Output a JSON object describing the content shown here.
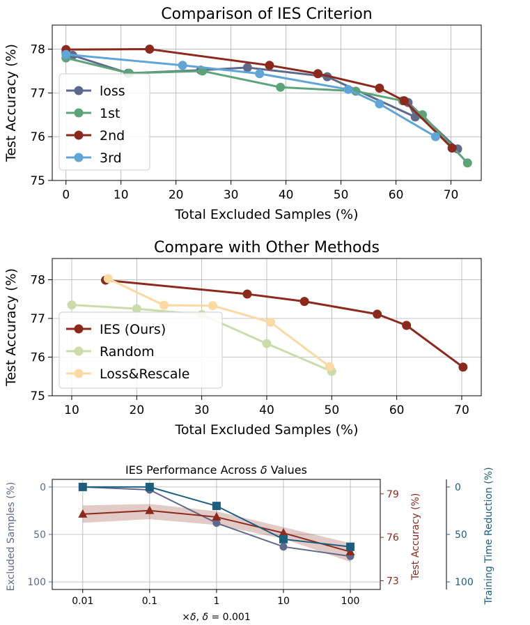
{
  "colors": {
    "loss": "#5e6a8c",
    "first": "#5da37a",
    "second": "#8b2a1c",
    "third": "#5fa6d6",
    "random": "#cbdbaa",
    "loss_rescale": "#fbd9a2",
    "excluded_axis": "#5e6a8c",
    "accuracy_axis": "#8b2a1c",
    "time_axis": "#1b5e80"
  },
  "chart_data": [
    {
      "type": "line",
      "title": "Comparison of IES Criterion",
      "xlabel": "Total Excluded Samples (%)",
      "ylabel": "Test Accuracy (%)",
      "xlim": [
        -2.5,
        75.5
      ],
      "ylim": [
        75,
        78.55
      ],
      "xticks": [
        0,
        10,
        20,
        30,
        40,
        50,
        60,
        70
      ],
      "yticks": [
        75,
        76,
        77,
        78
      ],
      "legend": "upper-left-middle",
      "series": [
        {
          "name": "loss",
          "color_key": "loss",
          "x": [
            0,
            1.2,
            11.3,
            24.5,
            33,
            47.5,
            63.5,
            62.2,
            71.2
          ],
          "y": [
            77.92,
            77.86,
            77.45,
            77.52,
            77.58,
            77.37,
            76.45,
            76.78,
            75.72
          ]
        },
        {
          "name": "1st",
          "color_key": "first",
          "x": [
            0,
            11.5,
            24.8,
            39,
            52.7,
            61.2,
            64.8,
            73
          ],
          "y": [
            77.8,
            77.45,
            77.5,
            77.13,
            77.04,
            76.82,
            76.5,
            75.4
          ]
        },
        {
          "name": "2nd",
          "color_key": "second",
          "x": [
            0,
            15.2,
            37,
            45.8,
            57,
            61.5,
            70.2
          ],
          "y": [
            77.99,
            78.0,
            77.63,
            77.44,
            77.11,
            76.82,
            75.74
          ]
        },
        {
          "name": "3rd",
          "color_key": "third",
          "x": [
            0,
            21.2,
            35.2,
            51.3,
            57,
            67.2
          ],
          "y": [
            77.88,
            77.63,
            77.44,
            77.08,
            76.75,
            76.0
          ]
        }
      ]
    },
    {
      "type": "line",
      "title": "Compare with Other Methods",
      "xlabel": "Total Excluded Samples (%)",
      "ylabel": "Test Accuracy (%)",
      "xlim": [
        7,
        73
      ],
      "ylim": [
        75,
        78.55
      ],
      "xticks": [
        10,
        20,
        30,
        40,
        50,
        60,
        70
      ],
      "yticks": [
        75,
        76,
        77,
        78
      ],
      "legend": "lower-left",
      "series": [
        {
          "name": "IES (Ours)",
          "color_key": "second",
          "x": [
            15.2,
            37,
            45.8,
            57,
            61.5,
            70.2
          ],
          "y": [
            77.99,
            77.63,
            77.44,
            77.11,
            76.82,
            75.74
          ]
        },
        {
          "name": "Random",
          "color_key": "random",
          "x": [
            10,
            20,
            30,
            40,
            50
          ],
          "y": [
            77.35,
            77.25,
            77.1,
            76.35,
            75.63
          ]
        },
        {
          "name": "Loss&Rescale",
          "color_key": "loss_rescale",
          "x": [
            15.6,
            24.2,
            31.7,
            40.6,
            49.7
          ],
          "y": [
            78.03,
            77.34,
            77.33,
            76.9,
            75.75
          ]
        }
      ]
    },
    {
      "type": "line",
      "title": "IES Performance Across δ Values",
      "title_pre": "IES Performance Across ",
      "title_var": "δ",
      "title_post": " Values",
      "xscale": "log",
      "x": [
        0.01,
        0.1,
        1,
        10,
        100
      ],
      "xtick_labels": [
        "0.01",
        "0.1",
        "1",
        "10",
        "100"
      ],
      "xlabel_pre": "×",
      "xlabel_var1": "δ",
      "xlabel_mid": ", ",
      "xlabel_var2": "δ",
      "xlabel_post": " = 0.001",
      "xlabel": "×δ, δ = 0.001",
      "ylabel_left": "Excluded Samples (%)",
      "ylabel_right": "Test Accuracy (%)",
      "ylabel_far_right": "Training Time Reduction (%)",
      "left_axis": {
        "ylim": [
          -8,
          108
        ],
        "inverted": true,
        "yticks": [
          0,
          50,
          100
        ]
      },
      "right_axis": {
        "ylim": [
          72.4,
          80
        ],
        "yticks": [
          73,
          76,
          79
        ]
      },
      "far_right_axis": {
        "ylim": [
          -8,
          108
        ],
        "inverted": true,
        "yticks": [
          0,
          50,
          100
        ]
      },
      "series": [
        {
          "name": "Excluded Samples",
          "axis": "left",
          "color_key": "excluded_axis",
          "marker": "circle",
          "values": [
            0,
            3,
            38,
            63,
            73
          ]
        },
        {
          "name": "Test Accuracy",
          "axis": "right",
          "color_key": "accuracy_axis",
          "marker": "triangle",
          "values": [
            77.6,
            77.85,
            77.4,
            76.3,
            75.0
          ],
          "band_low": [
            77.0,
            77.25,
            76.85,
            75.9,
            74.3
          ],
          "band_high": [
            78.2,
            78.3,
            77.8,
            76.7,
            75.6
          ]
        },
        {
          "name": "Training Time Reduction",
          "axis": "far_right",
          "color_key": "time_axis",
          "marker": "square",
          "values": [
            0,
            0,
            20,
            55,
            63
          ]
        }
      ]
    }
  ]
}
